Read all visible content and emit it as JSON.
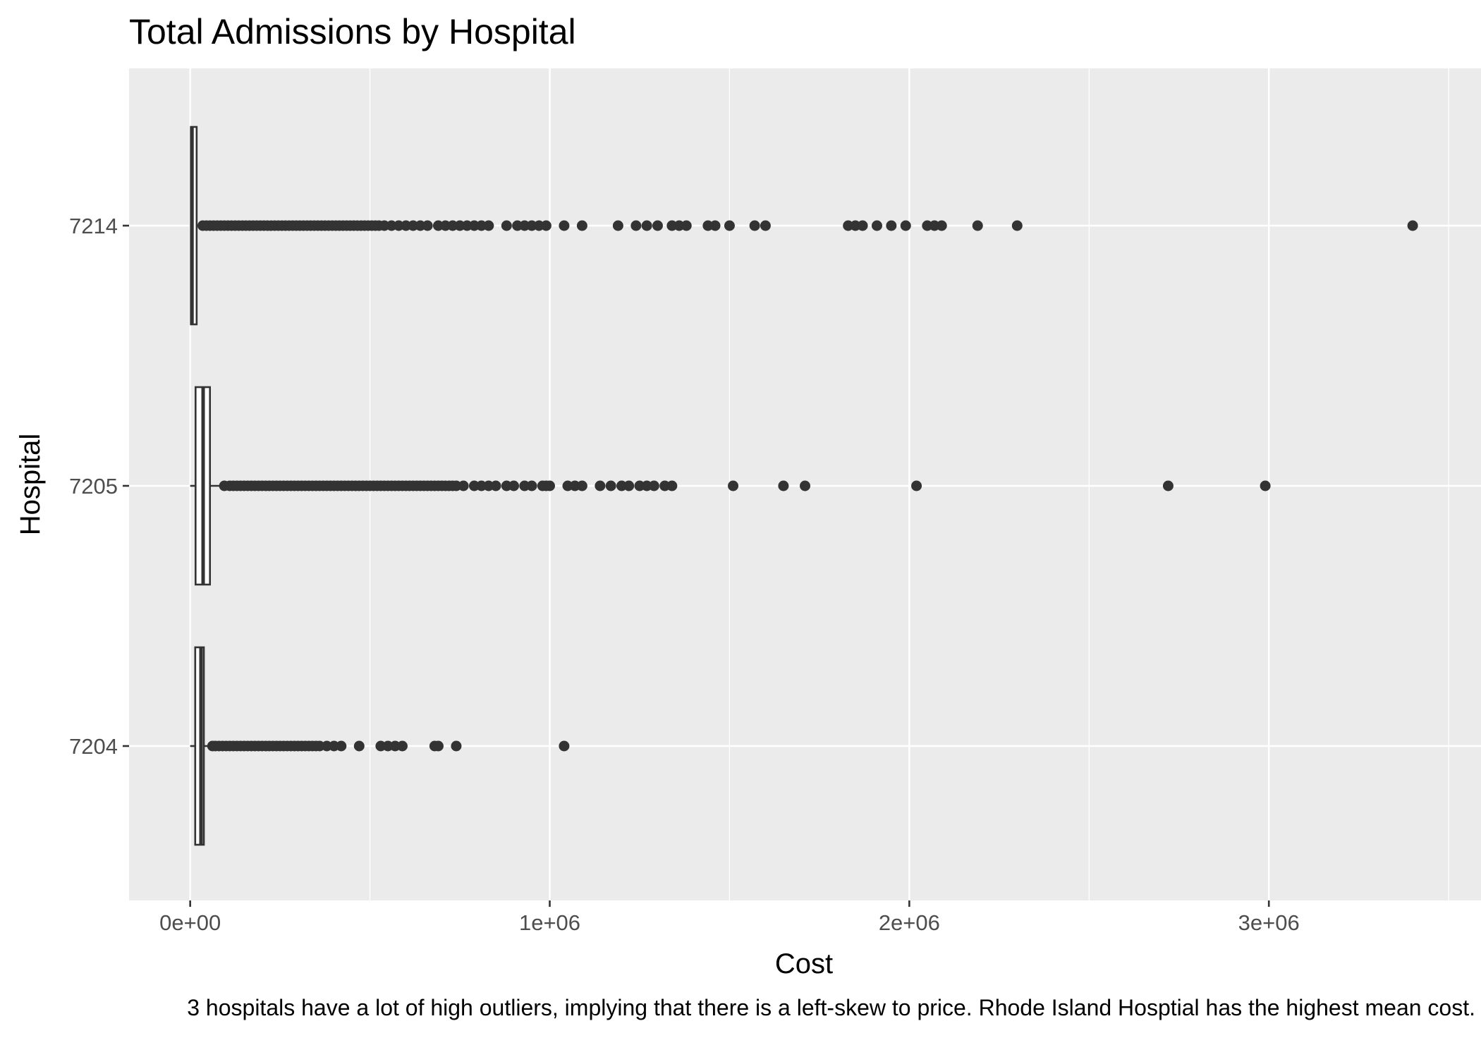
{
  "chart_data": {
    "type": "boxplot",
    "orientation": "horizontal",
    "title": "Total Admissions by Hospital",
    "xlabel": "Cost",
    "ylabel": "Hospital",
    "caption": "3 hospitals have a lot of high outliers, implying that there is a left-skew to price. Rhode Island Hosptial has the highest mean cost.",
    "xlim": [
      -170000,
      3590000
    ],
    "x_ticks": [
      {
        "value": 0,
        "label": "0e+00"
      },
      {
        "value": 1000000,
        "label": "1e+06"
      },
      {
        "value": 2000000,
        "label": "2e+06"
      },
      {
        "value": 3000000,
        "label": "3e+06"
      }
    ],
    "x_minor_ticks": [
      500000,
      1500000,
      2500000,
      3500000
    ],
    "grid": true,
    "colors": {
      "panel": "#ebebeb",
      "grid": "#ffffff",
      "ink": "#333333",
      "box_fill": "#ffffff"
    },
    "categories": [
      "7204",
      "7205",
      "7214"
    ],
    "boxes": [
      {
        "hospital": "7204",
        "whisker_low": 0,
        "q1": 14000,
        "median": 30000,
        "q3": 38000,
        "whisker_high": 60000,
        "outliers": [
          62000,
          70000,
          80000,
          90000,
          100000,
          110000,
          120000,
          130000,
          140000,
          150000,
          160000,
          170000,
          180000,
          190000,
          200000,
          210000,
          220000,
          230000,
          240000,
          250000,
          260000,
          270000,
          280000,
          290000,
          300000,
          310000,
          320000,
          330000,
          340000,
          350000,
          360000,
          380000,
          400000,
          420000,
          470000,
          530000,
          550000,
          570000,
          590000,
          680000,
          690000,
          740000,
          1040000
        ]
      },
      {
        "hospital": "7205",
        "whisker_low": 0,
        "q1": 15000,
        "median": 36000,
        "q3": 55000,
        "whisker_high": 90000,
        "outliers": [
          95000,
          110000,
          120000,
          130000,
          140000,
          150000,
          160000,
          170000,
          180000,
          190000,
          200000,
          210000,
          220000,
          230000,
          240000,
          250000,
          260000,
          270000,
          280000,
          290000,
          300000,
          310000,
          320000,
          330000,
          340000,
          350000,
          360000,
          370000,
          380000,
          390000,
          400000,
          410000,
          420000,
          430000,
          440000,
          450000,
          460000,
          470000,
          480000,
          490000,
          500000,
          510000,
          520000,
          530000,
          540000,
          550000,
          560000,
          570000,
          580000,
          590000,
          600000,
          610000,
          620000,
          630000,
          640000,
          650000,
          660000,
          670000,
          680000,
          690000,
          700000,
          710000,
          720000,
          730000,
          740000,
          760000,
          790000,
          810000,
          830000,
          850000,
          880000,
          900000,
          930000,
          950000,
          980000,
          990000,
          1000000,
          1050000,
          1070000,
          1090000,
          1140000,
          1170000,
          1200000,
          1220000,
          1250000,
          1270000,
          1290000,
          1320000,
          1340000,
          1510000,
          1650000,
          1710000,
          2020000,
          2720000,
          2990000
        ]
      },
      {
        "hospital": "7214",
        "whisker_low": 0,
        "q1": 2000,
        "median": 5000,
        "q3": 18000,
        "whisker_high": 30000,
        "outliers": [
          35000,
          45000,
          55000,
          65000,
          75000,
          85000,
          95000,
          105000,
          115000,
          125000,
          135000,
          145000,
          155000,
          165000,
          175000,
          185000,
          195000,
          205000,
          215000,
          225000,
          235000,
          245000,
          255000,
          265000,
          275000,
          285000,
          295000,
          305000,
          315000,
          325000,
          335000,
          345000,
          355000,
          365000,
          375000,
          385000,
          395000,
          405000,
          415000,
          425000,
          435000,
          445000,
          455000,
          465000,
          475000,
          485000,
          495000,
          505000,
          515000,
          525000,
          540000,
          560000,
          580000,
          600000,
          620000,
          640000,
          660000,
          690000,
          710000,
          730000,
          750000,
          770000,
          790000,
          810000,
          830000,
          880000,
          910000,
          930000,
          950000,
          970000,
          990000,
          1040000,
          1090000,
          1190000,
          1240000,
          1270000,
          1300000,
          1340000,
          1360000,
          1380000,
          1440000,
          1460000,
          1500000,
          1570000,
          1600000,
          1830000,
          1850000,
          1870000,
          1910000,
          1950000,
          1990000,
          2050000,
          2070000,
          2090000,
          2190000,
          2300000,
          3400000
        ]
      }
    ]
  }
}
